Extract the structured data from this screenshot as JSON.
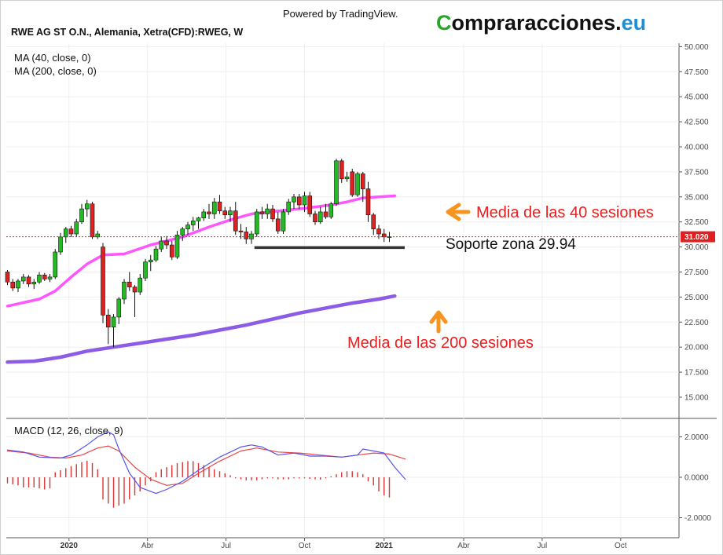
{
  "header": {
    "symbol_title": "RWE AG ST O.N., Alemania, Xetra(CFD):RWEG, W",
    "powered_by": "Powered by TradingView.",
    "brand": {
      "first_letter": "C",
      "middle": "ompraracciones.",
      "suffix": "eu",
      "first_color": "#2aa52a",
      "middle_color": "#111111",
      "suffix_color": "#1b8fd8"
    }
  },
  "legend": {
    "ma40_label": "MA (40, close, 0)",
    "ma200_label": "MA (200, close, 0)",
    "macd_label": "MACD (12, 26, close, 9)"
  },
  "annotations": {
    "ma40_text": "Media de las 40 sesiones",
    "ma200_text": "Media de las 200 sesiones",
    "support_text": "Soporte zona 29.94",
    "arrow_color": "#f7941d",
    "text_color": "#ee1c1c"
  },
  "last_price": {
    "value": 31.02,
    "label": "31.020",
    "color": "#e02020"
  },
  "colors": {
    "up": "#22bb22",
    "down": "#dd2222",
    "wick": "#111111",
    "ma40": "#ff55ff",
    "ma200": "#8c5ce6",
    "macd_line": "#5555ee",
    "signal_line": "#ee4444",
    "hist": "#dd3333",
    "support": "#333333",
    "grid": "#efefef"
  },
  "chart_data": [
    {
      "type": "candlestick",
      "title": "RWE AG ST O.N., Alemania, Xetra(CFD):RWEG, W",
      "ylim": [
        12.5,
        51
      ],
      "y_ticks": [
        "15.000",
        "17.500",
        "20.000",
        "22.500",
        "25.000",
        "27.500",
        "30.000",
        "32.500",
        "35.000",
        "37.500",
        "40.000",
        "42.500",
        "45.000",
        "47.500",
        "50.000"
      ],
      "x_ticks": [
        {
          "label": "2020",
          "bold": true
        },
        {
          "label": "Abr",
          "bold": false
        },
        {
          "label": "Jul",
          "bold": false
        },
        {
          "label": "Oct",
          "bold": false
        },
        {
          "label": "2021",
          "bold": true
        },
        {
          "label": "Abr",
          "bold": false
        },
        {
          "label": "Jul",
          "bold": false
        },
        {
          "label": "Oct",
          "bold": false
        }
      ],
      "candles": [
        [
          27.5,
          27.7,
          26.2,
          26.5
        ],
        [
          26.5,
          26.8,
          25.6,
          25.9
        ],
        [
          25.9,
          26.8,
          25.5,
          26.6
        ],
        [
          26.6,
          27.3,
          26.3,
          27.0
        ],
        [
          27.0,
          27.2,
          26.0,
          26.3
        ],
        [
          26.3,
          26.8,
          25.8,
          26.5
        ],
        [
          26.5,
          27.5,
          26.3,
          27.2
        ],
        [
          27.2,
          27.4,
          26.6,
          26.8
        ],
        [
          26.8,
          27.3,
          26.5,
          27.0
        ],
        [
          27.0,
          29.8,
          26.8,
          29.5
        ],
        [
          29.5,
          31.4,
          29.2,
          31.0
        ],
        [
          31.0,
          32.0,
          30.4,
          31.8
        ],
        [
          31.8,
          32.1,
          31.0,
          31.3
        ],
        [
          31.3,
          32.8,
          31.0,
          32.5
        ],
        [
          32.5,
          34.3,
          32.3,
          33.8
        ],
        [
          33.8,
          34.7,
          33.0,
          34.3
        ],
        [
          34.3,
          34.5,
          30.8,
          31.0
        ],
        [
          31.0,
          31.6,
          30.8,
          31.3
        ],
        [
          30.0,
          30.4,
          22.4,
          23.2
        ],
        [
          23.2,
          23.8,
          20.3,
          22.0
        ],
        [
          22.0,
          23.3,
          20.0,
          23.0
        ],
        [
          23.0,
          25.0,
          22.3,
          24.8
        ],
        [
          24.8,
          26.8,
          24.3,
          26.5
        ],
        [
          26.5,
          27.5,
          25.6,
          26.0
        ],
        [
          26.0,
          26.2,
          23.0,
          25.5
        ],
        [
          25.5,
          27.3,
          25.2,
          26.9
        ],
        [
          26.9,
          28.8,
          26.6,
          28.5
        ],
        [
          28.5,
          29.2,
          27.6,
          28.7
        ],
        [
          28.7,
          30.1,
          28.5,
          29.8
        ],
        [
          29.8,
          31.0,
          29.5,
          30.6
        ],
        [
          30.6,
          31.1,
          29.8,
          30.2
        ],
        [
          30.2,
          30.6,
          28.7,
          29.0
        ],
        [
          29.0,
          31.6,
          28.8,
          31.2
        ],
        [
          31.2,
          32.0,
          30.6,
          31.8
        ],
        [
          31.8,
          32.5,
          31.2,
          32.2
        ],
        [
          32.2,
          33.0,
          31.6,
          32.6
        ],
        [
          32.6,
          33.0,
          31.8,
          32.9
        ],
        [
          32.9,
          33.8,
          32.6,
          33.5
        ],
        [
          33.5,
          34.3,
          32.8,
          33.3
        ],
        [
          33.3,
          34.9,
          32.8,
          34.5
        ],
        [
          34.5,
          35.2,
          33.3,
          33.6
        ],
        [
          33.6,
          34.0,
          32.8,
          33.2
        ],
        [
          33.2,
          34.0,
          32.5,
          33.6
        ],
        [
          33.6,
          34.5,
          31.2,
          31.6
        ],
        [
          31.6,
          32.3,
          30.8,
          31.5
        ],
        [
          31.5,
          32.0,
          30.3,
          30.8
        ],
        [
          30.8,
          31.6,
          30.3,
          31.3
        ],
        [
          31.3,
          33.8,
          31.0,
          33.5
        ],
        [
          33.5,
          34.0,
          32.8,
          33.3
        ],
        [
          33.3,
          34.3,
          32.8,
          33.8
        ],
        [
          33.8,
          34.2,
          32.5,
          32.8
        ],
        [
          32.8,
          33.5,
          31.3,
          31.6
        ],
        [
          31.6,
          33.8,
          31.3,
          33.5
        ],
        [
          33.5,
          34.8,
          33.2,
          34.5
        ],
        [
          34.5,
          35.3,
          33.8,
          35.0
        ],
        [
          35.0,
          35.3,
          33.8,
          34.2
        ],
        [
          34.2,
          35.5,
          33.5,
          35.1
        ],
        [
          35.1,
          35.5,
          33.0,
          33.3
        ],
        [
          33.3,
          33.6,
          32.2,
          32.5
        ],
        [
          32.5,
          34.0,
          32.3,
          33.5
        ],
        [
          33.5,
          34.3,
          32.8,
          33.0
        ],
        [
          33.0,
          34.5,
          32.8,
          34.3
        ],
        [
          34.3,
          38.8,
          34.1,
          38.6
        ],
        [
          38.6,
          38.8,
          36.4,
          36.8
        ],
        [
          36.8,
          37.5,
          36.5,
          37.0
        ],
        [
          37.5,
          37.8,
          35.0,
          35.2
        ],
        [
          35.2,
          37.5,
          35.0,
          37.3
        ],
        [
          37.3,
          37.5,
          34.5,
          35.8
        ],
        [
          35.8,
          36.5,
          32.5,
          33.2
        ],
        [
          33.2,
          33.4,
          31.2,
          31.8
        ],
        [
          31.8,
          32.2,
          30.8,
          31.3
        ],
        [
          31.3,
          31.8,
          30.5,
          31.0
        ],
        [
          31.0,
          31.5,
          30.5,
          31.02
        ]
      ],
      "ma40": [
        [
          0,
          24.1
        ],
        [
          6,
          24.8
        ],
        [
          9,
          25.6
        ],
        [
          12,
          27.0
        ],
        [
          15,
          28.3
        ],
        [
          18,
          29.2
        ],
        [
          22,
          29.3
        ],
        [
          27,
          30.2
        ],
        [
          33,
          31.0
        ],
        [
          38,
          32.0
        ],
        [
          42,
          32.7
        ],
        [
          46,
          33.3
        ],
        [
          51,
          33.6
        ],
        [
          55,
          33.8
        ],
        [
          58,
          34.0
        ],
        [
          61,
          34.2
        ],
        [
          64,
          34.5
        ],
        [
          67,
          34.9
        ],
        [
          70,
          35.0
        ],
        [
          73,
          35.1
        ]
      ],
      "ma200": [
        [
          0,
          18.5
        ],
        [
          5,
          18.6
        ],
        [
          10,
          19.0
        ],
        [
          15,
          19.6
        ],
        [
          20,
          20.0
        ],
        [
          25,
          20.4
        ],
        [
          30,
          20.8
        ],
        [
          35,
          21.2
        ],
        [
          40,
          21.7
        ],
        [
          45,
          22.2
        ],
        [
          50,
          22.8
        ],
        [
          55,
          23.4
        ],
        [
          60,
          23.9
        ],
        [
          65,
          24.4
        ],
        [
          70,
          24.8
        ],
        [
          73,
          25.1
        ]
      ],
      "support": {
        "value": 29.94,
        "from_index": 47,
        "to_index": 74
      }
    },
    {
      "type": "line",
      "title": "MACD (12, 26, close, 9)",
      "ylim": [
        -3,
        3
      ],
      "y_ticks": [
        "-2.0000",
        "0.0000",
        "2.0000"
      ],
      "macd": [
        [
          0,
          1.35
        ],
        [
          3,
          1.25
        ],
        [
          6,
          1.0
        ],
        [
          10,
          0.95
        ],
        [
          12,
          1.1
        ],
        [
          15,
          1.6
        ],
        [
          17,
          2.0
        ],
        [
          19,
          2.25
        ],
        [
          20,
          2.1
        ],
        [
          21,
          1.4
        ],
        [
          23,
          0.2
        ],
        [
          25,
          -0.5
        ],
        [
          28,
          -0.8
        ],
        [
          30,
          -0.6
        ],
        [
          33,
          -0.2
        ],
        [
          36,
          0.35
        ],
        [
          40,
          1.0
        ],
        [
          44,
          1.5
        ],
        [
          46,
          1.6
        ],
        [
          48,
          1.5
        ],
        [
          51,
          1.1
        ],
        [
          54,
          1.2
        ],
        [
          57,
          1.05
        ],
        [
          60,
          1.05
        ],
        [
          63,
          1.0
        ],
        [
          66,
          1.1
        ],
        [
          67,
          1.4
        ],
        [
          69,
          1.3
        ],
        [
          71,
          1.2
        ],
        [
          73,
          0.5
        ],
        [
          75,
          -0.1
        ]
      ],
      "signal": [
        [
          0,
          1.3
        ],
        [
          4,
          1.2
        ],
        [
          8,
          1.0
        ],
        [
          11,
          0.95
        ],
        [
          14,
          1.1
        ],
        [
          17,
          1.45
        ],
        [
          19,
          1.55
        ],
        [
          21,
          1.3
        ],
        [
          24,
          0.5
        ],
        [
          27,
          -0.1
        ],
        [
          30,
          -0.4
        ],
        [
          33,
          -0.3
        ],
        [
          36,
          0.2
        ],
        [
          40,
          0.8
        ],
        [
          44,
          1.3
        ],
        [
          47,
          1.45
        ],
        [
          51,
          1.25
        ],
        [
          55,
          1.2
        ],
        [
          59,
          1.1
        ],
        [
          63,
          1.0
        ],
        [
          66,
          1.1
        ],
        [
          69,
          1.2
        ],
        [
          72,
          1.15
        ],
        [
          75,
          0.9
        ]
      ],
      "histogram": [
        -0.3,
        -0.35,
        -0.4,
        -0.5,
        -0.5,
        -0.5,
        -0.55,
        -0.6,
        -0.55,
        0.25,
        0.35,
        0.45,
        0.55,
        0.65,
        0.75,
        0.82,
        0.7,
        0.4,
        -1.1,
        -1.3,
        -1.5,
        -1.4,
        -1.3,
        -1.1,
        -0.9,
        -0.7,
        -0.4,
        -0.2,
        0.25,
        0.4,
        0.5,
        0.6,
        0.7,
        0.75,
        0.8,
        0.8,
        0.7,
        0.6,
        0.5,
        0.4,
        0.3,
        0.2,
        0.1,
        -0.05,
        -0.1,
        -0.15,
        -0.15,
        -0.15,
        -0.1,
        -0.05,
        -0.05,
        -0.1,
        -0.1,
        -0.1,
        -0.05,
        -0.05,
        -0.05,
        -0.08,
        -0.1,
        -0.12,
        -0.05,
        0.05,
        0.15,
        0.25,
        0.3,
        0.3,
        0.25,
        0.15,
        -0.2,
        -0.4,
        -0.7,
        -0.9,
        -1.0
      ]
    }
  ]
}
